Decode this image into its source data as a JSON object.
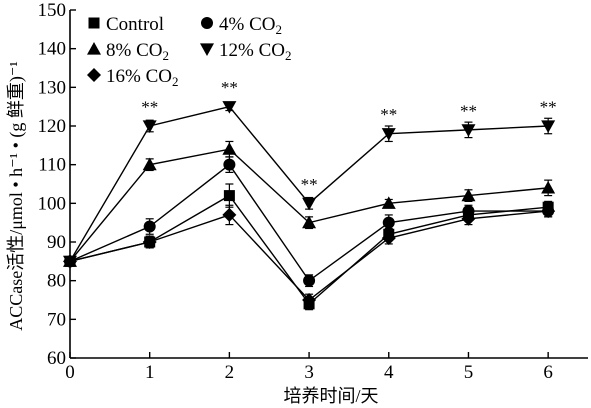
{
  "chart_data": {
    "type": "line",
    "xlabel": "培养时间/天",
    "ylabel": "ACCase活性/μmol • h⁻¹ • (g 鲜重)⁻¹",
    "x": [
      0,
      1,
      2,
      3,
      4,
      5,
      6
    ],
    "xlim": [
      0,
      6.5
    ],
    "ylim": [
      60,
      150
    ],
    "yticks": [
      60,
      70,
      80,
      90,
      100,
      110,
      120,
      130,
      140,
      150
    ],
    "xticks": [
      0,
      1,
      2,
      3,
      4,
      5,
      6
    ],
    "grid": false,
    "legend_position": "top-left",
    "series": [
      {
        "name": "Control",
        "marker": "square",
        "values": [
          85,
          90,
          102,
          74,
          92,
          97,
          99
        ],
        "errors": [
          0,
          1.5,
          3,
          1.5,
          1.5,
          1.5,
          1.5
        ]
      },
      {
        "name": "4% CO2",
        "marker": "circle",
        "values": [
          85,
          94,
          110,
          80,
          95,
          98,
          98
        ],
        "errors": [
          0,
          2,
          2,
          1.5,
          2,
          1.5,
          1.5
        ]
      },
      {
        "name": "8% CO2",
        "marker": "triangle-up",
        "values": [
          85,
          110,
          114,
          95,
          100,
          102,
          104
        ],
        "errors": [
          0,
          1.5,
          2,
          1.5,
          1,
          1.5,
          2
        ]
      },
      {
        "name": "12% CO2",
        "marker": "triangle-down",
        "values": [
          85,
          120,
          125,
          100,
          118,
          119,
          120
        ],
        "errors": [
          0,
          1.5,
          1,
          1.5,
          2,
          2,
          2
        ]
      },
      {
        "name": "16% CO2",
        "marker": "diamond",
        "values": [
          85,
          90,
          97,
          75,
          91,
          96,
          98
        ],
        "errors": [
          0,
          1.5,
          2.5,
          1.5,
          1.5,
          1.5,
          1.5
        ]
      }
    ],
    "annotations": [
      {
        "text": "**",
        "x": 1,
        "y": 123.5
      },
      {
        "text": "**",
        "x": 2,
        "y": 128.5
      },
      {
        "text": "**",
        "x": 3,
        "y": 103.5
      },
      {
        "text": "**",
        "x": 4,
        "y": 121.5
      },
      {
        "text": "**",
        "x": 5,
        "y": 122.5
      },
      {
        "text": "**",
        "x": 6,
        "y": 123.5
      }
    ],
    "colors": {
      "line": "#000000",
      "background": "#ffffff"
    }
  }
}
